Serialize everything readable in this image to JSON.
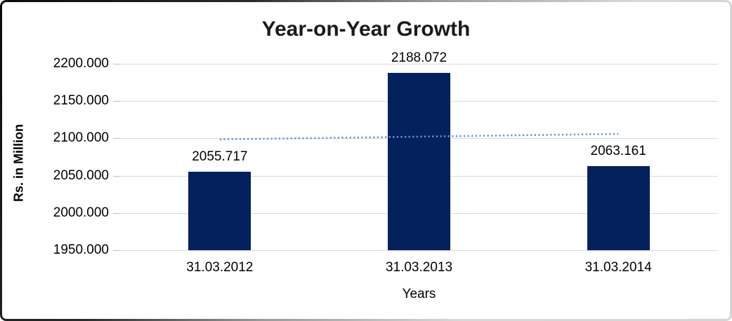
{
  "window": {
    "background": "#FFFFFF",
    "frame_border_dark": "#0A0A0A",
    "frame_border_light": "#D8D8D8"
  },
  "chart_data": {
    "type": "bar",
    "title": "Year-on-Year Growth",
    "xlabel": "Years",
    "ylabel": "Rs. in Million",
    "categories": [
      "31.03.2012",
      "31.03.2013",
      "31.03.2014"
    ],
    "values": [
      2055.717,
      2188.072,
      2063.161
    ],
    "value_labels": [
      "2055.717",
      "2188.072",
      "2063.161"
    ],
    "ylim": [
      1950,
      2200
    ],
    "ytick_interval": 50,
    "ytick_labels": [
      "2200.000",
      "2150.000",
      "2100.000",
      "2050.000",
      "2000.000",
      "1950.000"
    ],
    "grid": "horizontal-only",
    "legend": "none",
    "bar_color": "#03215C",
    "gridline_color": "#D9D9D9",
    "trendline": {
      "type": "linear",
      "style": "dotted",
      "color": "#5B9BD5",
      "start_value": 2098.6,
      "end_value": 2106.0
    }
  }
}
